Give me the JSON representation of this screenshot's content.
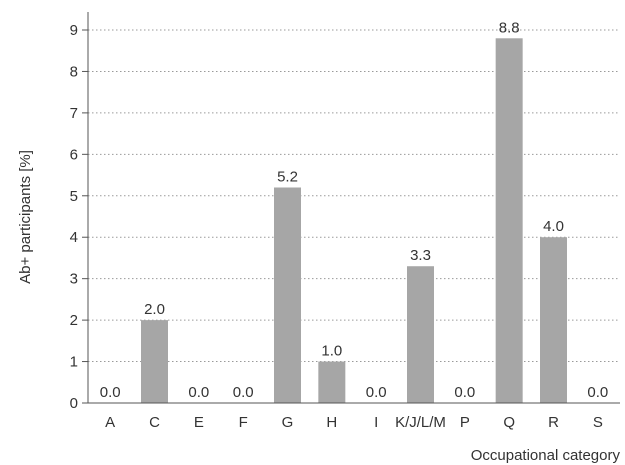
{
  "chart_data": {
    "type": "bar",
    "title": "",
    "xlabel": "Occupational category",
    "ylabel": "Ab+ participants [%]",
    "categories": [
      "A",
      "C",
      "E",
      "F",
      "G",
      "H",
      "I",
      "K/J/L/M",
      "P",
      "Q",
      "R",
      "S"
    ],
    "values": [
      0.0,
      2.0,
      0.0,
      0.0,
      5.2,
      1.0,
      0.0,
      3.3,
      0.0,
      8.8,
      4.0,
      0.0
    ],
    "value_labels": [
      "0.0",
      "2.0",
      "0.0",
      "0.0",
      "5.2",
      "1.0",
      "0.0",
      "3.3",
      "0.0",
      "8.8",
      "4.0",
      "0.0"
    ],
    "ylim": [
      0,
      9
    ],
    "yticks": [
      0,
      1,
      2,
      3,
      4,
      5,
      6,
      7,
      8,
      9
    ],
    "grid": "horizontal dotted",
    "legend": "none",
    "bar_color": "#a6a6a6"
  }
}
